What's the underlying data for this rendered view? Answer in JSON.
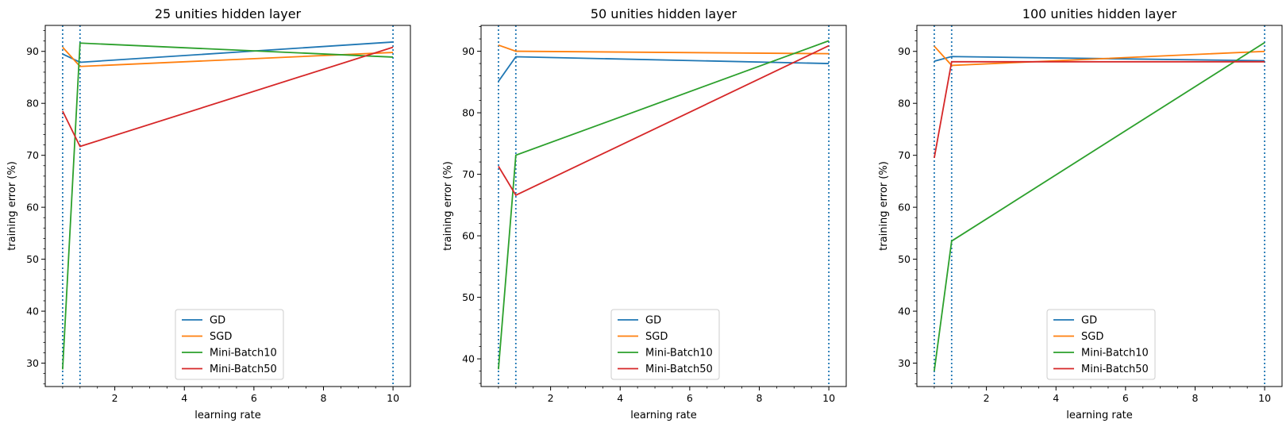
{
  "colors": {
    "GD": "#1f77b4",
    "SGD": "#ff7f0e",
    "Mini-Batch10": "#2ca02c",
    "Mini-Batch50": "#d62728",
    "vline": "#1f77b4"
  },
  "chart_data": [
    {
      "type": "line",
      "title": "25 unities hidden layer",
      "xlabel": "learning rate",
      "ylabel": "training error (%)",
      "x": [
        0.5,
        1,
        10
      ],
      "xlim": [
        -0.0,
        10.5
      ],
      "ylim": [
        25.5,
        95.0
      ],
      "xticks": [
        2,
        4,
        6,
        8,
        10
      ],
      "yticks": [
        30,
        40,
        50,
        60,
        70,
        80,
        90
      ],
      "vlines": [
        0.5,
        1,
        10
      ],
      "legend_loc": "lower-center",
      "series": [
        {
          "name": "GD",
          "values": [
            89.5,
            87.9,
            91.8
          ]
        },
        {
          "name": "SGD",
          "values": [
            90.8,
            87.1,
            89.8
          ]
        },
        {
          "name": "Mini-Batch10",
          "values": [
            28.8,
            91.6,
            88.9
          ]
        },
        {
          "name": "Mini-Batch50",
          "values": [
            78.5,
            71.7,
            90.8
          ]
        }
      ]
    },
    {
      "type": "line",
      "title": "50 unities hidden layer",
      "xlabel": "learning rate",
      "ylabel": "training error (%)",
      "x": [
        0.5,
        1,
        10
      ],
      "xlim": [
        -0.0,
        10.5
      ],
      "ylim": [
        35.5,
        94.2
      ],
      "xticks": [
        2,
        4,
        6,
        8,
        10
      ],
      "yticks": [
        40,
        50,
        60,
        70,
        80,
        90
      ],
      "vlines": [
        0.5,
        1,
        10
      ],
      "legend_loc": "lower-center",
      "series": [
        {
          "name": "GD",
          "values": [
            85.1,
            89.1,
            88.0
          ]
        },
        {
          "name": "SGD",
          "values": [
            91.0,
            90.0,
            89.6
          ]
        },
        {
          "name": "Mini-Batch10",
          "values": [
            38.3,
            73.1,
            91.7
          ]
        },
        {
          "name": "Mini-Batch50",
          "values": [
            71.3,
            66.6,
            90.9
          ]
        }
      ]
    },
    {
      "type": "line",
      "title": "100 unities hidden layer",
      "xlabel": "learning rate",
      "ylabel": "training error (%)",
      "x": [
        0.5,
        1,
        10
      ],
      "xlim": [
        -0.0,
        10.5
      ],
      "ylim": [
        25.5,
        95.0
      ],
      "xticks": [
        2,
        4,
        6,
        8,
        10
      ],
      "yticks": [
        30,
        40,
        50,
        60,
        70,
        80,
        90
      ],
      "vlines": [
        0.5,
        1,
        10
      ],
      "legend_loc": "lower-center",
      "series": [
        {
          "name": "GD",
          "values": [
            88.1,
            89.0,
            88.2
          ]
        },
        {
          "name": "SGD",
          "values": [
            91.0,
            87.3,
            90.0
          ]
        },
        {
          "name": "Mini-Batch10",
          "values": [
            28.5,
            53.5,
            91.7
          ]
        },
        {
          "name": "Mini-Batch50",
          "values": [
            69.5,
            88.0,
            88.0
          ]
        }
      ]
    }
  ]
}
